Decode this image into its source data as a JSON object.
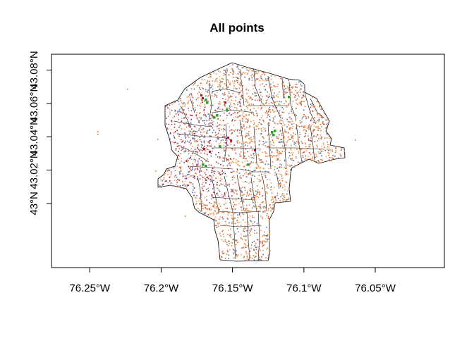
{
  "title": "All points",
  "x_ticks": [
    {
      "value": -76.25,
      "label": "76.25°W"
    },
    {
      "value": -76.2,
      "label": "76.2°W"
    },
    {
      "value": -76.15,
      "label": "76.15°W"
    },
    {
      "value": -76.1,
      "label": "76.1°W"
    },
    {
      "value": -76.05,
      "label": "76.05°W"
    }
  ],
  "y_ticks": [
    {
      "value": 43.0,
      "label": "43°N"
    },
    {
      "value": 43.02,
      "label": "43.02°N"
    },
    {
      "value": 43.04,
      "label": "43.04°N"
    },
    {
      "value": 43.06,
      "label": "43.06°N"
    },
    {
      "value": 43.08,
      "label": "43.08°N"
    }
  ],
  "extent": {
    "lon": [
      -76.2768,
      -76.0016
    ],
    "lat": [
      42.9615,
      43.0895
    ]
  },
  "colors": {
    "boundary": "#000000",
    "points": [
      "#e07b2c",
      "#f0a070",
      "#4a6fa5",
      "#7a5195",
      "#a0182b",
      "#c0392b",
      "#d9734a"
    ],
    "highlight": "#2e9e2e"
  }
}
